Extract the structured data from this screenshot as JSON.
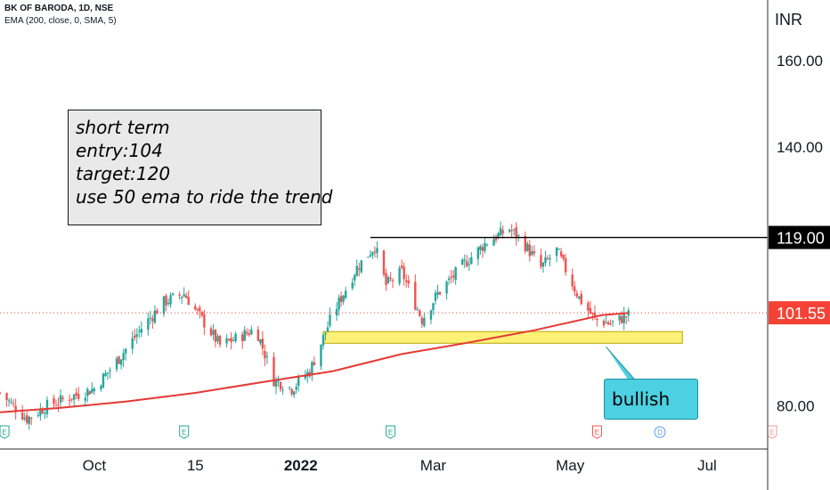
{
  "header": {
    "symbol_line": "BK OF BARODA, 1D, NSE",
    "indicator_line": "EMA (200, close, 0, SMA, 5)"
  },
  "note": {
    "lines": [
      "short term",
      "entry:104",
      "target:120",
      "use 50 ema to ride the trend"
    ]
  },
  "callout": {
    "text": "bullish"
  },
  "colors": {
    "up": "#26a69a",
    "down": "#ef5350",
    "ema": "#e53935",
    "zone": "#fff176",
    "callout": "#4dd0e1",
    "last_price": "#f44336"
  },
  "chart_data": {
    "type": "candlestick",
    "currency_label": "INR",
    "y_ticks": [
      80,
      100,
      120,
      140,
      160
    ],
    "y_tick_labels": [
      "80.00",
      "",
      "",
      "140.00",
      "160.00"
    ],
    "ylim": [
      70,
      174
    ],
    "x_range": [
      "2021-08-20",
      "2022-07-28"
    ],
    "x_ticks": [
      {
        "date": "2021-10-01",
        "label": "Oct",
        "bold": false
      },
      {
        "date": "2021-11-15",
        "label": "15",
        "bold": false
      },
      {
        "date": "2022-01-01",
        "label": "2022",
        "bold": true
      },
      {
        "date": "2022-03-01",
        "label": "Mar",
        "bold": false
      },
      {
        "date": "2022-05-01",
        "label": "May",
        "bold": false
      },
      {
        "date": "2022-07-01",
        "label": "Jul",
        "bold": false
      }
    ],
    "price_path": [
      [
        "2021-08-20",
        83
      ],
      [
        "2021-09-01",
        77
      ],
      [
        "2021-09-10",
        80
      ],
      [
        "2021-09-20",
        82
      ],
      [
        "2021-10-01",
        84
      ],
      [
        "2021-10-12",
        91
      ],
      [
        "2021-10-22",
        98
      ],
      [
        "2021-11-01",
        104
      ],
      [
        "2021-11-10",
        106
      ],
      [
        "2021-11-18",
        100
      ],
      [
        "2021-11-26",
        94
      ],
      [
        "2021-12-05",
        96
      ],
      [
        "2021-12-12",
        98
      ],
      [
        "2021-12-20",
        86
      ],
      [
        "2021-12-28",
        84
      ],
      [
        "2022-01-05",
        88
      ],
      [
        "2022-01-15",
        101
      ],
      [
        "2022-01-26",
        112
      ],
      [
        "2022-02-03",
        117
      ],
      [
        "2022-02-08",
        108
      ],
      [
        "2022-02-15",
        111
      ],
      [
        "2022-02-24",
        100
      ],
      [
        "2022-03-03",
        106
      ],
      [
        "2022-03-15",
        113
      ],
      [
        "2022-03-25",
        118
      ],
      [
        "2022-04-04",
        121
      ],
      [
        "2022-04-10",
        118
      ],
      [
        "2022-04-18",
        112
      ],
      [
        "2022-04-25",
        116
      ],
      [
        "2022-05-05",
        105
      ],
      [
        "2022-05-12",
        100
      ],
      [
        "2022-05-19",
        99
      ],
      [
        "2022-05-27",
        101
      ]
    ],
    "ema": {
      "name": "EMA (200, close, 0, SMA, 5)",
      "points": [
        [
          "2021-08-20",
          78.5
        ],
        [
          "2021-09-15",
          79.5
        ],
        [
          "2021-10-15",
          81
        ],
        [
          "2021-11-15",
          83
        ],
        [
          "2021-12-15",
          85.5
        ],
        [
          "2022-01-15",
          88
        ],
        [
          "2022-02-15",
          92
        ],
        [
          "2022-03-15",
          94.5
        ],
        [
          "2022-04-15",
          97.5
        ],
        [
          "2022-05-15",
          101
        ],
        [
          "2022-05-27",
          101.5
        ]
      ]
    },
    "resistance_line": {
      "value": 119,
      "label": "119.00",
      "start": "2022-02-01"
    },
    "support_zone": {
      "low": 94.5,
      "high": 97.2,
      "start": "2022-01-11",
      "end": "2022-06-20"
    },
    "last_price": {
      "value": 101.55,
      "label": "101.55"
    },
    "event_markers": [
      {
        "date": "2021-08-22",
        "label": "E",
        "type": "earnings"
      },
      {
        "date": "2021-11-10",
        "label": "E",
        "type": "earnings"
      },
      {
        "date": "2022-02-10",
        "label": "E",
        "type": "earnings"
      },
      {
        "date": "2022-05-13",
        "label": "E",
        "type": "earnings-negative"
      },
      {
        "date": "2022-06-10",
        "label": "D",
        "type": "dividend"
      },
      {
        "date": "2022-07-30",
        "label": "E",
        "type": "earnings-upcoming"
      }
    ]
  }
}
